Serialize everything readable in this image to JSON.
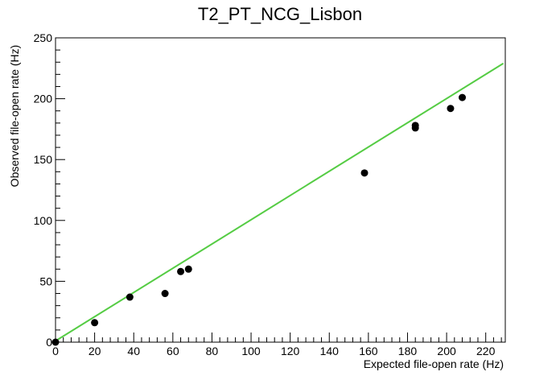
{
  "chart_data": {
    "type": "scatter",
    "title": "T2_PT_NCG_Lisbon",
    "xlabel": "Expected file-open rate (Hz)",
    "ylabel": "Observed file-open rate (Hz)",
    "xlim": [
      0,
      230
    ],
    "ylim": [
      0,
      250
    ],
    "x_ticks": [
      0,
      20,
      40,
      60,
      80,
      100,
      120,
      140,
      160,
      180,
      200,
      220
    ],
    "y_ticks": [
      0,
      50,
      100,
      150,
      200,
      250
    ],
    "x_minor_step": 4,
    "y_minor_step": 10,
    "grid": false,
    "legend": "none",
    "points": {
      "x": [
        0,
        20,
        38,
        56,
        64,
        68,
        158,
        184,
        184,
        202,
        208
      ],
      "y": [
        0,
        16,
        37,
        40,
        58,
        60,
        139,
        176,
        178,
        192,
        201
      ],
      "color": "#000000"
    },
    "fit_line": {
      "x": [
        0,
        229
      ],
      "y": [
        1,
        229
      ],
      "color": "#55cc44"
    }
  }
}
